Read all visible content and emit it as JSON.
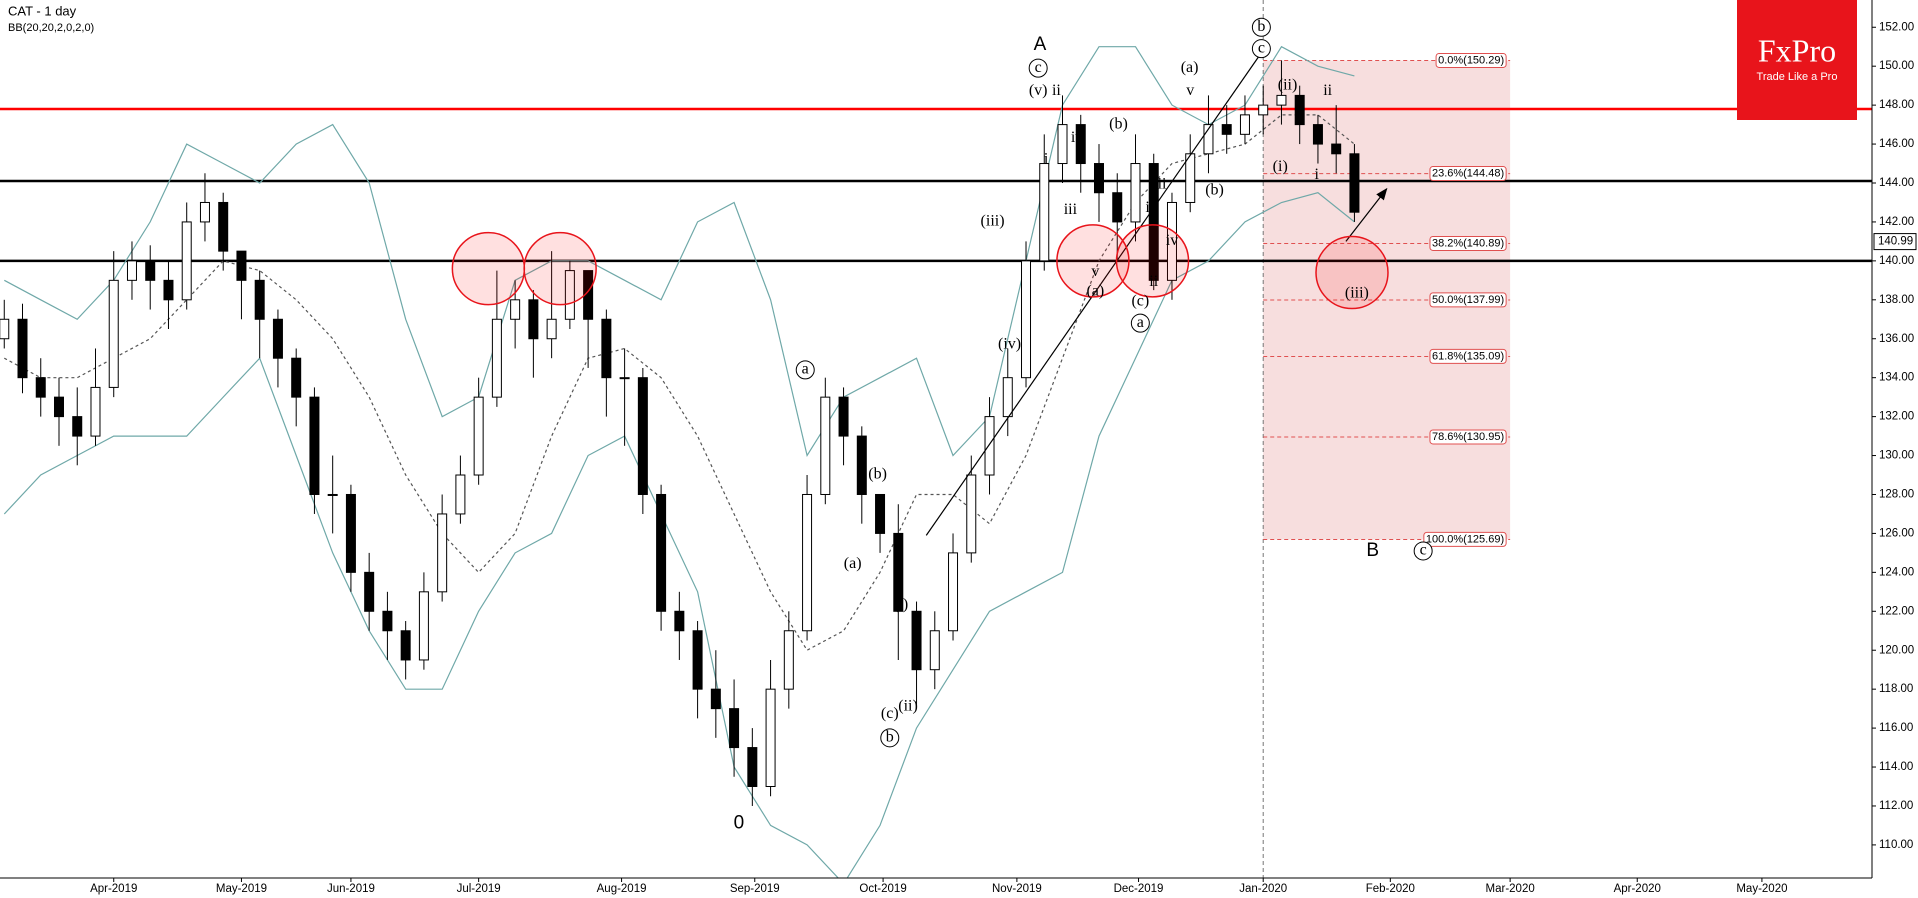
{
  "chart_data": {
    "type": "candlestick",
    "title": "CAT  - 1 day",
    "xlim": [
      -18.7,
      289.1
    ],
    "ylim": [
      108.3,
      153.4
    ],
    "xticks": [
      {
        "value": 0,
        "label": "Apr-2019"
      },
      {
        "value": 21,
        "label": "May-2019"
      },
      {
        "value": 39,
        "label": "Jun-2019"
      },
      {
        "value": 60,
        "label": "Jul-2019"
      },
      {
        "value": 83.5,
        "label": "Aug-2019"
      },
      {
        "value": 105.4,
        "label": "Sep-2019"
      },
      {
        "value": 126.5,
        "label": "Oct-2019"
      },
      {
        "value": 148.5,
        "label": "Nov-2019"
      },
      {
        "value": 168.5,
        "label": "Dec-2019"
      },
      {
        "value": 189,
        "label": "Jan-2020"
      },
      {
        "value": 209.9,
        "label": "Feb-2020"
      },
      {
        "value": 229.6,
        "label": "Mar-2020"
      },
      {
        "value": 250.5,
        "label": "Apr-2020"
      },
      {
        "value": 271,
        "label": "May-2020"
      }
    ],
    "yticks": [
      {
        "value": 110,
        "label": "110.00"
      },
      {
        "value": 112,
        "label": "112.00"
      },
      {
        "value": 114,
        "label": "114.00"
      },
      {
        "value": 116,
        "label": "116.00"
      },
      {
        "value": 118,
        "label": "118.00"
      },
      {
        "value": 120,
        "label": "120.00"
      },
      {
        "value": 122,
        "label": "122.00"
      },
      {
        "value": 124,
        "label": "124.00"
      },
      {
        "value": 126,
        "label": "126.00"
      },
      {
        "value": 128,
        "label": "128.00"
      },
      {
        "value": 130,
        "label": "130.00"
      },
      {
        "value": 132,
        "label": "132.00"
      },
      {
        "value": 134,
        "label": "134.00"
      },
      {
        "value": 136,
        "label": "136.00"
      },
      {
        "value": 138,
        "label": "138.00"
      },
      {
        "value": 140,
        "label": "140.00"
      },
      {
        "value": 142,
        "label": "142.00"
      },
      {
        "value": 144,
        "label": "144.00"
      },
      {
        "value": 146,
        "label": "146.00"
      },
      {
        "value": 148,
        "label": "148.00"
      },
      {
        "value": 150,
        "label": "150.00"
      },
      {
        "value": 152,
        "label": "152.00"
      }
    ],
    "last_price": 140.99,
    "candles": {
      "x": [
        -18,
        -15,
        -12,
        -9,
        -6,
        -3,
        0,
        3,
        6,
        9,
        12,
        15,
        18,
        21,
        24,
        27,
        30,
        33,
        36,
        39,
        42,
        45,
        48,
        51,
        54,
        57,
        60,
        63,
        66,
        69,
        72,
        75,
        78,
        81,
        84,
        87,
        90,
        93,
        96,
        99,
        102,
        105,
        108,
        111,
        114,
        117,
        120,
        123,
        126,
        129,
        132,
        135,
        138,
        141,
        144,
        147,
        150,
        153,
        156,
        159,
        162,
        165,
        168,
        171,
        174,
        177,
        180,
        183,
        186,
        189,
        192,
        195,
        198,
        201,
        204
      ],
      "ohlc": [
        [
          136,
          138,
          135.5,
          137
        ],
        [
          137,
          137.8,
          133.2,
          134
        ],
        [
          134,
          135,
          132,
          133
        ],
        [
          133,
          134,
          130.5,
          132
        ],
        [
          132,
          133.5,
          129.5,
          131
        ],
        [
          131,
          135.5,
          130.5,
          133.5
        ],
        [
          133.5,
          140.5,
          133,
          139
        ],
        [
          139,
          141,
          138,
          140
        ],
        [
          140,
          140.8,
          137.5,
          139
        ],
        [
          139,
          140,
          136.5,
          138
        ],
        [
          138,
          143,
          137.5,
          142
        ],
        [
          142,
          144.5,
          141,
          143
        ],
        [
          143,
          143.5,
          139.5,
          140.5
        ],
        [
          140.5,
          140.5,
          137,
          139
        ],
        [
          139,
          139.5,
          135,
          137
        ],
        [
          137,
          137.5,
          133.5,
          135
        ],
        [
          135,
          135.5,
          131.5,
          133
        ],
        [
          133,
          133.5,
          127,
          128
        ],
        [
          128,
          130,
          126,
          128
        ],
        [
          128,
          128.5,
          123,
          124
        ],
        [
          124,
          125,
          121,
          122
        ],
        [
          122,
          123,
          119.5,
          121
        ],
        [
          121,
          121.5,
          118.5,
          119.5
        ],
        [
          119.5,
          124,
          119,
          123
        ],
        [
          123,
          128,
          122.5,
          127
        ],
        [
          127,
          130,
          126.5,
          129
        ],
        [
          129,
          134,
          128.5,
          133
        ],
        [
          133,
          139.5,
          132.5,
          137
        ],
        [
          137,
          139,
          135.5,
          138
        ],
        [
          138,
          138.5,
          134,
          136
        ],
        [
          136,
          140.5,
          135,
          137
        ],
        [
          137,
          140,
          136.5,
          139.5
        ],
        [
          139.5,
          139.5,
          134.5,
          137
        ],
        [
          137,
          137.5,
          132,
          134
        ],
        [
          134,
          135.5,
          130.5,
          134
        ],
        [
          134,
          134.5,
          127,
          128
        ],
        [
          128,
          128.5,
          121,
          122
        ],
        [
          122,
          123,
          119.5,
          121
        ],
        [
          121,
          121.5,
          116.5,
          118
        ],
        [
          118,
          120,
          115.5,
          117
        ],
        [
          117,
          118.5,
          113.5,
          115
        ],
        [
          115,
          116,
          112,
          113
        ],
        [
          113,
          119.5,
          112.5,
          118
        ],
        [
          118,
          122,
          117,
          121
        ],
        [
          121,
          129,
          120.5,
          128
        ],
        [
          128,
          134,
          127.5,
          133
        ],
        [
          133,
          133.5,
          129.5,
          131
        ],
        [
          131,
          131.5,
          126.5,
          128
        ],
        [
          128,
          128,
          125,
          126
        ],
        [
          126,
          127.5,
          119.5,
          122
        ],
        [
          122,
          122.5,
          117,
          119
        ],
        [
          119,
          122,
          118,
          121
        ],
        [
          121,
          126,
          120.5,
          125
        ],
        [
          125,
          130,
          124.5,
          129
        ],
        [
          129,
          133,
          128,
          132
        ],
        [
          132,
          135.5,
          131,
          134
        ],
        [
          134,
          141,
          133.5,
          140
        ],
        [
          140,
          146.5,
          139.5,
          145
        ],
        [
          145,
          148.5,
          144,
          147
        ],
        [
          147,
          147.5,
          143.5,
          145
        ],
        [
          145,
          146,
          142,
          143.5
        ],
        [
          143.5,
          144.5,
          140,
          142
        ],
        [
          142,
          146.5,
          141,
          145
        ],
        [
          145,
          145.5,
          138.5,
          139
        ],
        [
          139,
          143.5,
          138,
          143
        ],
        [
          143,
          146.5,
          142.5,
          145.5
        ],
        [
          145.5,
          148.5,
          144.5,
          147
        ],
        [
          147,
          148,
          145.5,
          146.5
        ],
        [
          146.5,
          148.5,
          146,
          147.5
        ],
        [
          147.5,
          149,
          146.5,
          148
        ],
        [
          148,
          150.3,
          147,
          148.5
        ],
        [
          148.5,
          149,
          146,
          147
        ],
        [
          147,
          147.5,
          145,
          146
        ],
        [
          146,
          148,
          144.5,
          145.5
        ],
        [
          145.5,
          146,
          142,
          142.5
        ]
      ]
    },
    "bollinger": {
      "label": "BB(20,20,2,0,2,0)",
      "color": "#6fa8a8",
      "x": [
        -18,
        -12,
        -6,
        0,
        6,
        12,
        18,
        24,
        30,
        36,
        42,
        48,
        54,
        60,
        66,
        72,
        78,
        84,
        90,
        96,
        102,
        108,
        114,
        120,
        126,
        132,
        138,
        144,
        150,
        156,
        162,
        168,
        174,
        180,
        186,
        192,
        198,
        204
      ],
      "upper": [
        139,
        138,
        137,
        139,
        142,
        146,
        145,
        144,
        146,
        147,
        144,
        137,
        132,
        133,
        139,
        140,
        140,
        139,
        138,
        142,
        143,
        138,
        130,
        133,
        134,
        135,
        130,
        132,
        140,
        148,
        151,
        151,
        148,
        147,
        148,
        151,
        150,
        149.5
      ],
      "middle": [
        135,
        134,
        134,
        135,
        136,
        138,
        140,
        139.5,
        138,
        136,
        133,
        129,
        126,
        124,
        126,
        131,
        135,
        135.5,
        134,
        131,
        127,
        123,
        120,
        121,
        124,
        128,
        128,
        126.5,
        130,
        135,
        140,
        143,
        145,
        145.5,
        146,
        147.5,
        147.5,
        146
      ],
      "lower": [
        127,
        129,
        130,
        131,
        131,
        131,
        133,
        135,
        130,
        125,
        121,
        118,
        118,
        122,
        125,
        126,
        130,
        131,
        127,
        123,
        114,
        111,
        110,
        108,
        111,
        116,
        119,
        122,
        123,
        124,
        131,
        135,
        139,
        140,
        142,
        143,
        143.5,
        142
      ]
    },
    "levels": [
      {
        "value": 147.8,
        "color": "#ff0000"
      },
      {
        "value": 144.1,
        "color": "#000000"
      },
      {
        "value": 140.0,
        "color": "#000000"
      }
    ],
    "fibonacci": {
      "x_start": 189,
      "x_end": 229.6,
      "color": "#f7dede",
      "line_color": "#e05050",
      "levels": [
        {
          "value": 150.29,
          "label": "0.0%(150.29)"
        },
        {
          "value": 144.48,
          "label": "23.6%(144.48)"
        },
        {
          "value": 140.89,
          "label": "38.2%(140.89)"
        },
        {
          "value": 137.99,
          "label": "50.0%(137.99)"
        },
        {
          "value": 135.09,
          "label": "61.8%(135.09)"
        },
        {
          "value": 130.95,
          "label": "78.6%(130.95)"
        },
        {
          "value": 125.69,
          "label": "100.0%(125.69)"
        }
      ]
    },
    "highlights": [
      {
        "x": 61.6,
        "y": 139.6
      },
      {
        "x": 73.4,
        "y": 139.6
      },
      {
        "x": 161,
        "y": 140.0
      },
      {
        "x": 170.8,
        "y": 140.0
      },
      {
        "x": 203.6,
        "y": 139.4
      }
    ],
    "trendlines": [
      {
        "x1": 133.6,
        "y1": 125.9,
        "x2": 188.5,
        "y2": 150.6,
        "arrow": false
      },
      {
        "x1": 202.6,
        "y1": 141.0,
        "x2": 209.3,
        "y2": 143.7,
        "arrow": true
      }
    ],
    "annotations": [
      {
        "text": "A",
        "x": 152.3,
        "y": 151.1,
        "circled": false
      },
      {
        "text": "c",
        "x": 152,
        "y": 149.9,
        "circled": true
      },
      {
        "text": "(v)",
        "x": 152,
        "y": 148.7,
        "circled": false
      },
      {
        "text": "ii",
        "x": 155,
        "y": 148.7,
        "circled": false
      },
      {
        "text": "i",
        "x": 153.3,
        "y": 145.2,
        "circled": false
      },
      {
        "text": "iv",
        "x": 158.4,
        "y": 146.3,
        "circled": false
      },
      {
        "text": "iii",
        "x": 157.3,
        "y": 142.6,
        "circled": false
      },
      {
        "text": "(b)",
        "x": 165.2,
        "y": 147.0,
        "circled": false
      },
      {
        "text": "v",
        "x": 161.4,
        "y": 139.4,
        "circled": false
      },
      {
        "text": "(a)",
        "x": 161.4,
        "y": 138.4,
        "circled": false
      },
      {
        "text": "(iii)",
        "x": 144.5,
        "y": 142.0,
        "circled": false
      },
      {
        "text": "(iv)",
        "x": 147.3,
        "y": 135.7,
        "circled": false
      },
      {
        "text": "(c)",
        "x": 168.8,
        "y": 137.9,
        "circled": false
      },
      {
        "text": "a",
        "x": 168.8,
        "y": 136.8,
        "circled": true
      },
      {
        "text": "ii",
        "x": 171,
        "y": 138.9,
        "circled": false
      },
      {
        "text": "i",
        "x": 170,
        "y": 142.7,
        "circled": false
      },
      {
        "text": "iii",
        "x": 172,
        "y": 143.9,
        "circled": false
      },
      {
        "text": "iv",
        "x": 174,
        "y": 141.0,
        "circled": false
      },
      {
        "text": "(a)",
        "x": 176.9,
        "y": 149.9,
        "circled": false
      },
      {
        "text": "v",
        "x": 177,
        "y": 148.7,
        "circled": false
      },
      {
        "text": "(b)",
        "x": 181,
        "y": 143.6,
        "circled": false
      },
      {
        "text": "b",
        "x": 188.7,
        "y": 152.0,
        "circled": true
      },
      {
        "text": "c",
        "x": 188.7,
        "y": 150.9,
        "circled": true
      },
      {
        "text": "(ii)",
        "x": 193,
        "y": 149.0,
        "circled": false
      },
      {
        "text": "(i)",
        "x": 191.8,
        "y": 144.8,
        "circled": false
      },
      {
        "text": "ii",
        "x": 199.6,
        "y": 148.7,
        "circled": false
      },
      {
        "text": "i",
        "x": 197.8,
        "y": 144.4,
        "circled": false
      },
      {
        "text": "(iii)",
        "x": 204.4,
        "y": 138.3,
        "circled": false
      },
      {
        "text": "B",
        "x": 207,
        "y": 125.1,
        "circled": false
      },
      {
        "text": "c",
        "x": 215.3,
        "y": 125.1,
        "circled": true
      },
      {
        "text": "(b)",
        "x": 125.6,
        "y": 129.0,
        "circled": false
      },
      {
        "text": "(a)",
        "x": 121.5,
        "y": 124.4,
        "circled": false
      },
      {
        "text": "(i)",
        "x": 129.4,
        "y": 122.3,
        "circled": false
      },
      {
        "text": "(c)",
        "x": 127.6,
        "y": 116.7,
        "circled": false
      },
      {
        "text": "b",
        "x": 127.6,
        "y": 115.5,
        "circled": true
      },
      {
        "text": "(ii)",
        "x": 130.6,
        "y": 117.1,
        "circled": false
      },
      {
        "text": "a",
        "x": 113.7,
        "y": 134.4,
        "circled": true
      },
      {
        "text": "0",
        "x": 102.8,
        "y": 111.1,
        "circled": false
      }
    ],
    "logo": {
      "brand": "FxPro",
      "tagline": "Trade Like a Pro",
      "color": "#e8141b"
    }
  }
}
